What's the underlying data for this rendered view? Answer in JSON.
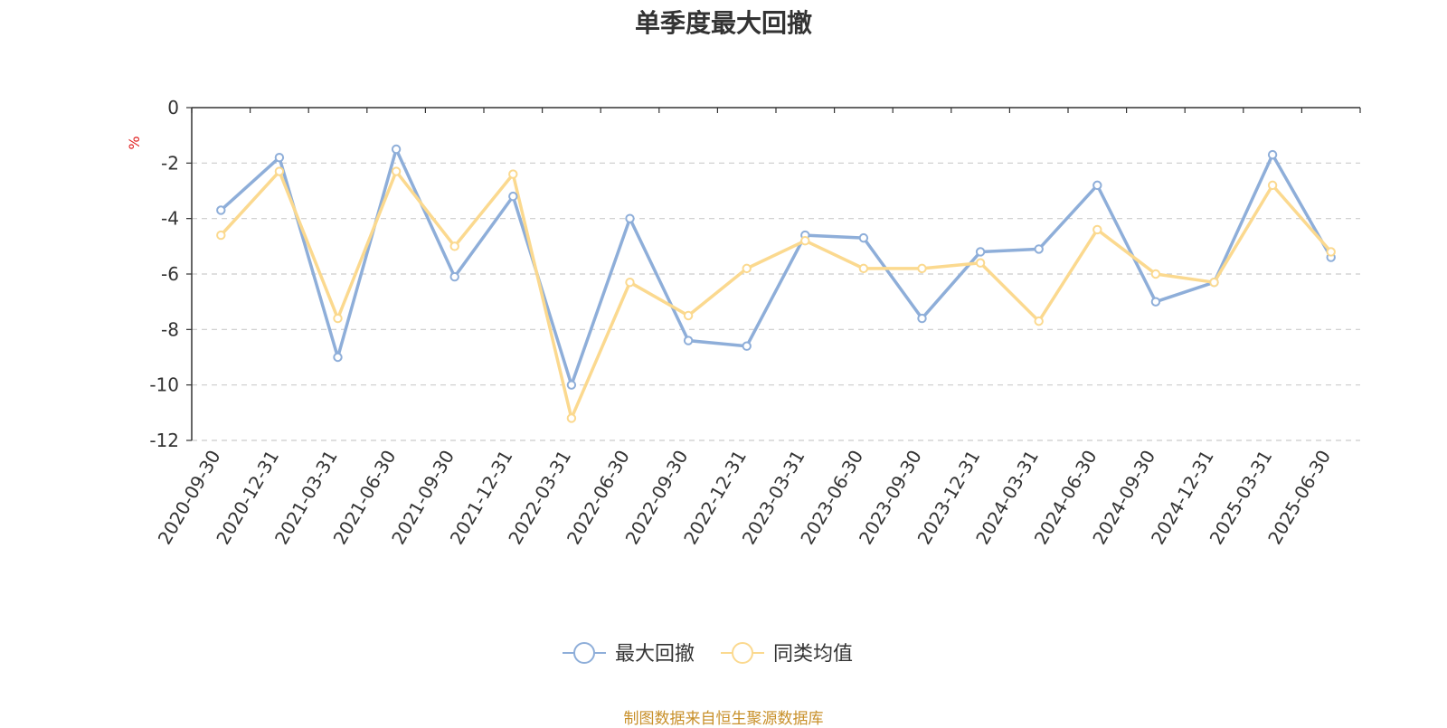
{
  "chart_data": {
    "type": "line",
    "title": "单季度最大回撤",
    "ylabel": "%",
    "ylim": [
      -12,
      0
    ],
    "yticks": [
      0,
      -2,
      -4,
      -6,
      -8,
      -10,
      -12
    ],
    "grid": true,
    "legend_position": "bottom",
    "categories": [
      "2020-09-30",
      "2020-12-31",
      "2021-03-31",
      "2021-06-30",
      "2021-09-30",
      "2021-12-31",
      "2022-03-31",
      "2022-06-30",
      "2022-09-30",
      "2022-12-31",
      "2023-03-31",
      "2023-06-30",
      "2023-09-30",
      "2023-12-31",
      "2024-03-31",
      "2024-06-30",
      "2024-09-30",
      "2024-12-31",
      "2025-03-31",
      "2025-06-30"
    ],
    "series": [
      {
        "name": "最大回撤",
        "color": "#8eaed9",
        "values": [
          -3.7,
          -1.8,
          -9.0,
          -1.5,
          -6.1,
          -3.2,
          -10.0,
          -4.0,
          -8.4,
          -8.6,
          -4.6,
          -4.7,
          -7.6,
          -5.2,
          -5.1,
          -2.8,
          -7.0,
          -6.3,
          -1.7,
          -5.4
        ]
      },
      {
        "name": "同类均值",
        "color": "#fbd98f",
        "values": [
          -4.6,
          -2.3,
          -7.6,
          -2.3,
          -5.0,
          -2.4,
          -11.2,
          -6.3,
          -7.5,
          -5.8,
          -4.8,
          -5.8,
          -5.8,
          -5.6,
          -7.7,
          -4.4,
          -6.0,
          -6.3,
          -2.8,
          -5.2
        ]
      }
    ]
  },
  "footer": {
    "source": "制图数据来自恒生聚源数据库"
  }
}
